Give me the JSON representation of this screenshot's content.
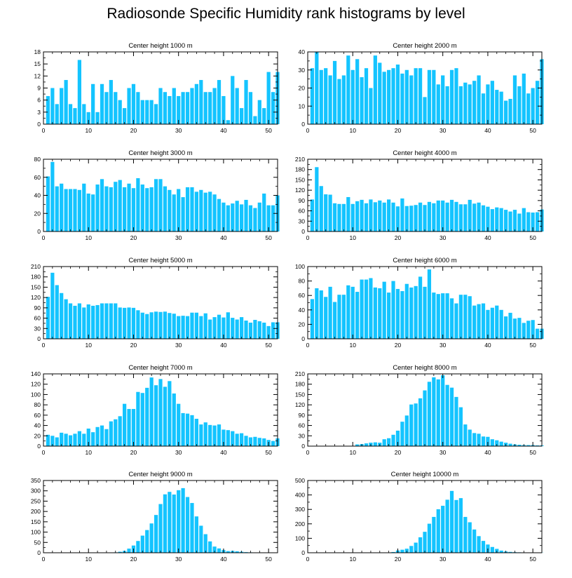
{
  "title": "Radiosonde Specific Humidity rank histograms by level",
  "bar_color": "#14c4ff",
  "chart_data": [
    {
      "type": "bar",
      "title": "Center height 1000 m",
      "xlim": [
        0,
        52
      ],
      "ylim": [
        0,
        18
      ],
      "yticks": [
        0,
        3,
        6,
        9,
        12,
        15,
        18
      ],
      "xticks": [
        0,
        10,
        20,
        30,
        40,
        50
      ],
      "values": [
        7,
        9,
        5,
        9,
        11,
        5,
        4,
        16,
        5,
        3,
        10,
        3,
        10,
        8,
        11,
        8,
        6,
        4,
        9,
        10,
        8,
        6,
        6,
        6,
        5,
        9,
        8,
        7,
        9,
        7,
        8,
        8,
        9,
        10,
        11,
        8,
        8,
        9,
        11,
        7,
        1,
        12,
        9,
        4,
        11,
        8,
        2,
        6,
        4,
        13,
        8,
        13
      ]
    },
    {
      "type": "bar",
      "title": "Center height 2000 m",
      "xlim": [
        0,
        52
      ],
      "ylim": [
        0,
        40
      ],
      "yticks": [
        0,
        10,
        20,
        30,
        40
      ],
      "xticks": [
        0,
        10,
        20,
        30,
        40,
        50
      ],
      "values": [
        31,
        40,
        30,
        31,
        27,
        35,
        25,
        27,
        38,
        30,
        36,
        26,
        31,
        20,
        38,
        34,
        29,
        30,
        31,
        33,
        28,
        30,
        27,
        31,
        31,
        15,
        30,
        30,
        22,
        27,
        21,
        30,
        31,
        21,
        23,
        22,
        24,
        27,
        17,
        22,
        24,
        19,
        18,
        13,
        14,
        27,
        21,
        28,
        17,
        20,
        24,
        36
      ]
    },
    {
      "type": "bar",
      "title": "Center height 3000 m",
      "xlim": [
        0,
        52
      ],
      "ylim": [
        0,
        80
      ],
      "yticks": [
        0,
        20,
        40,
        60,
        80
      ],
      "xticks": [
        0,
        10,
        20,
        30,
        40,
        50
      ],
      "values": [
        61,
        77,
        50,
        53,
        47,
        47,
        47,
        46,
        53,
        42,
        41,
        52,
        58,
        50,
        49,
        55,
        57,
        49,
        53,
        48,
        59,
        52,
        48,
        49,
        58,
        58,
        50,
        46,
        41,
        47,
        38,
        49,
        49,
        44,
        46,
        43,
        44,
        41,
        36,
        32,
        29,
        31,
        34,
        30,
        35,
        29,
        26,
        32,
        42,
        29,
        29,
        40
      ]
    },
    {
      "type": "bar",
      "title": "Center height 4000 m",
      "xlim": [
        0,
        52
      ],
      "ylim": [
        0,
        210
      ],
      "yticks": [
        0,
        30,
        60,
        90,
        120,
        150,
        180,
        210
      ],
      "xticks": [
        0,
        10,
        20,
        30,
        40,
        50
      ],
      "values": [
        93,
        187,
        132,
        108,
        107,
        82,
        80,
        80,
        100,
        80,
        88,
        92,
        82,
        93,
        85,
        90,
        84,
        93,
        84,
        73,
        96,
        74,
        75,
        77,
        84,
        77,
        86,
        82,
        90,
        90,
        84,
        92,
        86,
        79,
        79,
        92,
        81,
        84,
        76,
        72,
        65,
        70,
        68,
        63,
        58,
        63,
        52,
        68,
        56,
        55,
        56,
        64
      ]
    },
    {
      "type": "bar",
      "title": "Center height 5000 m",
      "xlim": [
        0,
        52
      ],
      "ylim": [
        0,
        210
      ],
      "yticks": [
        0,
        30,
        60,
        90,
        120,
        150,
        180,
        210
      ],
      "xticks": [
        0,
        10,
        20,
        30,
        40,
        50
      ],
      "values": [
        122,
        192,
        156,
        133,
        115,
        103,
        96,
        103,
        91,
        100,
        96,
        98,
        103,
        103,
        103,
        103,
        91,
        90,
        91,
        90,
        83,
        76,
        72,
        77,
        79,
        78,
        79,
        75,
        73,
        66,
        67,
        66,
        76,
        76,
        66,
        74,
        56,
        63,
        70,
        62,
        77,
        61,
        56,
        63,
        53,
        47,
        55,
        51,
        47,
        37,
        48,
        48
      ]
    },
    {
      "type": "bar",
      "title": "Center height 6000 m",
      "xlim": [
        0,
        52
      ],
      "ylim": [
        0,
        100
      ],
      "yticks": [
        0,
        20,
        40,
        60,
        80,
        100
      ],
      "xticks": [
        0,
        10,
        20,
        30,
        40,
        50
      ],
      "values": [
        55,
        70,
        67,
        58,
        72,
        51,
        61,
        61,
        74,
        72,
        65,
        82,
        82,
        84,
        71,
        70,
        79,
        64,
        80,
        69,
        66,
        76,
        71,
        73,
        86,
        72,
        96,
        64,
        62,
        63,
        63,
        56,
        49,
        61,
        61,
        59,
        46,
        48,
        49,
        40,
        43,
        46,
        40,
        31,
        36,
        28,
        29,
        22,
        25,
        26,
        14,
        14
      ]
    },
    {
      "type": "bar",
      "title": "Center height 7000 m",
      "xlim": [
        0,
        52
      ],
      "ylim": [
        0,
        140
      ],
      "yticks": [
        0,
        20,
        40,
        60,
        80,
        100,
        120,
        140
      ],
      "xticks": [
        0,
        10,
        20,
        30,
        40,
        50
      ],
      "values": [
        22,
        20,
        17,
        26,
        24,
        21,
        24,
        29,
        24,
        34,
        27,
        37,
        40,
        33,
        48,
        52,
        58,
        82,
        72,
        72,
        105,
        103,
        113,
        133,
        118,
        130,
        115,
        126,
        102,
        82,
        64,
        63,
        60,
        53,
        42,
        46,
        41,
        40,
        42,
        32,
        31,
        29,
        24,
        25,
        20,
        17,
        18,
        16,
        15,
        12,
        10,
        15
      ]
    },
    {
      "type": "bar",
      "title": "Center height 8000 m",
      "xlim": [
        0,
        52
      ],
      "ylim": [
        0,
        210
      ],
      "yticks": [
        0,
        30,
        60,
        90,
        120,
        150,
        180,
        210
      ],
      "xticks": [
        0,
        10,
        20,
        30,
        40,
        50
      ],
      "values": [
        0,
        0,
        0,
        0,
        0,
        0,
        0,
        0,
        0,
        0,
        5,
        6,
        8,
        10,
        11,
        10,
        20,
        23,
        33,
        45,
        71,
        89,
        121,
        124,
        139,
        162,
        187,
        200,
        194,
        206,
        178,
        170,
        143,
        113,
        63,
        48,
        38,
        36,
        28,
        27,
        20,
        17,
        13,
        10,
        7,
        5,
        4,
        3,
        3,
        3,
        2,
        2
      ]
    },
    {
      "type": "bar",
      "title": "Center height 9000 m",
      "xlim": [
        0,
        52
      ],
      "ylim": [
        0,
        350
      ],
      "yticks": [
        0,
        50,
        100,
        150,
        200,
        250,
        300,
        350
      ],
      "xticks": [
        0,
        10,
        20,
        30,
        40,
        50
      ],
      "values": [
        0,
        0,
        0,
        0,
        0,
        0,
        0,
        0,
        0,
        0,
        0,
        0,
        0,
        0,
        0,
        2,
        5,
        9,
        20,
        35,
        57,
        83,
        110,
        142,
        183,
        236,
        283,
        295,
        282,
        303,
        313,
        270,
        241,
        176,
        131,
        90,
        55,
        30,
        21,
        13,
        8,
        9,
        7,
        5,
        3,
        2,
        1,
        1,
        0,
        0,
        0,
        0
      ]
    },
    {
      "type": "bar",
      "title": "Center height 10000 m",
      "xlim": [
        0,
        52
      ],
      "ylim": [
        0,
        500
      ],
      "yticks": [
        0,
        100,
        200,
        300,
        400,
        500
      ],
      "xticks": [
        0,
        10,
        20,
        30,
        40,
        50
      ],
      "values": [
        0,
        0,
        0,
        0,
        0,
        0,
        0,
        0,
        0,
        0,
        0,
        0,
        0,
        0,
        0,
        0,
        0,
        2,
        5,
        16,
        21,
        28,
        47,
        70,
        107,
        145,
        201,
        248,
        301,
        325,
        367,
        428,
        365,
        378,
        248,
        211,
        161,
        115,
        82,
        57,
        40,
        27,
        15,
        9,
        6,
        4,
        3,
        2,
        2,
        1,
        1,
        1
      ]
    }
  ]
}
